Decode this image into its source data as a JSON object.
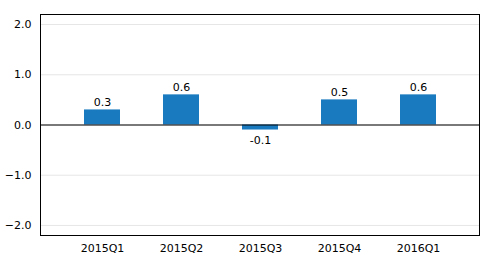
{
  "chart_data": {
    "type": "bar",
    "categories": [
      "2015Q1",
      "2015Q2",
      "2015Q3",
      "2015Q4",
      "2016Q1"
    ],
    "values": [
      0.3,
      0.6,
      -0.1,
      0.5,
      0.6
    ],
    "color": "#1a7abf",
    "ylim": [
      -2.2,
      2.2
    ],
    "yticks": [
      -2,
      -1,
      0,
      1,
      2
    ],
    "grid": true,
    "data_labels": true
  }
}
